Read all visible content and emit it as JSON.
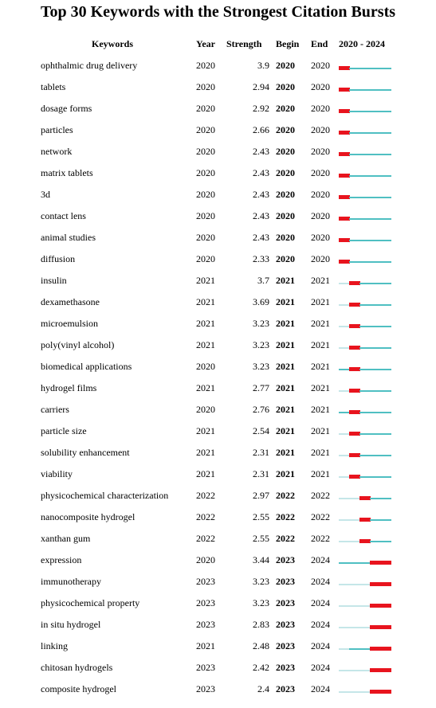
{
  "title": "Top 30 Keywords with the Strongest Citation Bursts",
  "headers": {
    "keywords": "Keywords",
    "year": "Year",
    "strength": "Strength",
    "begin": "Begin",
    "end": "End",
    "range": "2020 - 2024"
  },
  "colors": {
    "burst": "#e8141e",
    "active": "#4fbfc2",
    "inactive": "#c5e6e8"
  },
  "chart_data": {
    "type": "table",
    "timeline": {
      "start": 2020,
      "end": 2024
    },
    "columns": [
      "Keywords",
      "Year",
      "Strength",
      "Begin",
      "End",
      "2020 - 2024"
    ],
    "rows": [
      {
        "keyword": "ophthalmic drug delivery",
        "year": 2020,
        "strength": "3.9",
        "begin": 2020,
        "end": 2020
      },
      {
        "keyword": "tablets",
        "year": 2020,
        "strength": "2.94",
        "begin": 2020,
        "end": 2020
      },
      {
        "keyword": "dosage forms",
        "year": 2020,
        "strength": "2.92",
        "begin": 2020,
        "end": 2020
      },
      {
        "keyword": "particles",
        "year": 2020,
        "strength": "2.66",
        "begin": 2020,
        "end": 2020
      },
      {
        "keyword": "network",
        "year": 2020,
        "strength": "2.43",
        "begin": 2020,
        "end": 2020
      },
      {
        "keyword": "matrix tablets",
        "year": 2020,
        "strength": "2.43",
        "begin": 2020,
        "end": 2020
      },
      {
        "keyword": "3d",
        "year": 2020,
        "strength": "2.43",
        "begin": 2020,
        "end": 2020
      },
      {
        "keyword": "contact lens",
        "year": 2020,
        "strength": "2.43",
        "begin": 2020,
        "end": 2020
      },
      {
        "keyword": "animal studies",
        "year": 2020,
        "strength": "2.43",
        "begin": 2020,
        "end": 2020
      },
      {
        "keyword": "diffusion",
        "year": 2020,
        "strength": "2.33",
        "begin": 2020,
        "end": 2020
      },
      {
        "keyword": "insulin",
        "year": 2021,
        "strength": "3.7",
        "begin": 2021,
        "end": 2021
      },
      {
        "keyword": "dexamethasone",
        "year": 2021,
        "strength": "3.69",
        "begin": 2021,
        "end": 2021
      },
      {
        "keyword": "microemulsion",
        "year": 2021,
        "strength": "3.23",
        "begin": 2021,
        "end": 2021
      },
      {
        "keyword": "poly(vinyl alcohol)",
        "year": 2021,
        "strength": "3.23",
        "begin": 2021,
        "end": 2021
      },
      {
        "keyword": "biomedical applications",
        "year": 2020,
        "strength": "3.23",
        "begin": 2021,
        "end": 2021
      },
      {
        "keyword": "hydrogel films",
        "year": 2021,
        "strength": "2.77",
        "begin": 2021,
        "end": 2021
      },
      {
        "keyword": "carriers",
        "year": 2020,
        "strength": "2.76",
        "begin": 2021,
        "end": 2021
      },
      {
        "keyword": "particle size",
        "year": 2021,
        "strength": "2.54",
        "begin": 2021,
        "end": 2021
      },
      {
        "keyword": "solubility enhancement",
        "year": 2021,
        "strength": "2.31",
        "begin": 2021,
        "end": 2021
      },
      {
        "keyword": "viability",
        "year": 2021,
        "strength": "2.31",
        "begin": 2021,
        "end": 2021
      },
      {
        "keyword": "physicochemical characterization",
        "year": 2022,
        "strength": "2.97",
        "begin": 2022,
        "end": 2022
      },
      {
        "keyword": "nanocomposite hydrogel",
        "year": 2022,
        "strength": "2.55",
        "begin": 2022,
        "end": 2022
      },
      {
        "keyword": "xanthan gum",
        "year": 2022,
        "strength": "2.55",
        "begin": 2022,
        "end": 2022
      },
      {
        "keyword": "expression",
        "year": 2020,
        "strength": "3.44",
        "begin": 2023,
        "end": 2024
      },
      {
        "keyword": "immunotherapy",
        "year": 2023,
        "strength": "3.23",
        "begin": 2023,
        "end": 2024
      },
      {
        "keyword": "physicochemical property",
        "year": 2023,
        "strength": "3.23",
        "begin": 2023,
        "end": 2024
      },
      {
        "keyword": "in situ hydrogel",
        "year": 2023,
        "strength": "2.83",
        "begin": 2023,
        "end": 2024
      },
      {
        "keyword": "linking",
        "year": 2021,
        "strength": "2.48",
        "begin": 2023,
        "end": 2024
      },
      {
        "keyword": "chitosan hydrogels",
        "year": 2023,
        "strength": "2.42",
        "begin": 2023,
        "end": 2024
      },
      {
        "keyword": "composite hydrogel",
        "year": 2023,
        "strength": "2.4",
        "begin": 2023,
        "end": 2024
      }
    ]
  }
}
